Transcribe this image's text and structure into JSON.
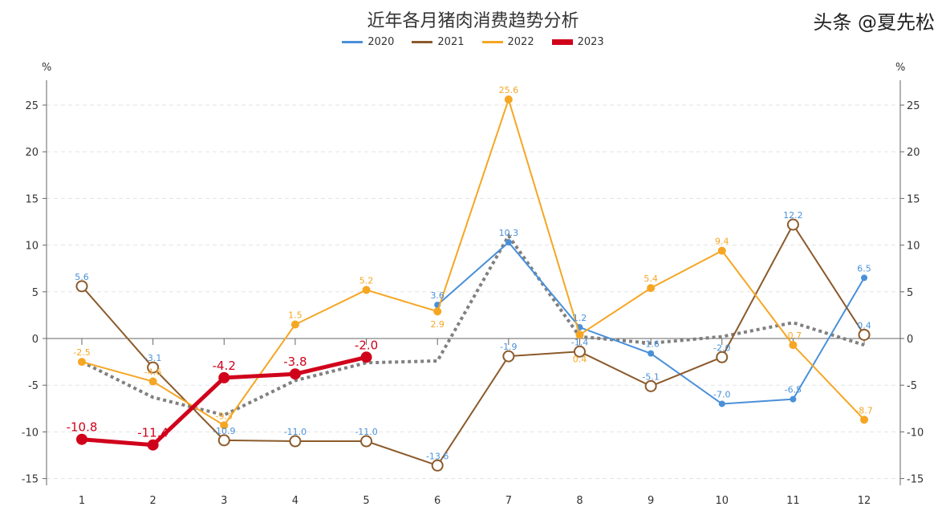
{
  "chart_data": {
    "type": "line",
    "title": "近年各月猪肉消费趋势分析",
    "categories": [
      "1",
      "2",
      "3",
      "4",
      "5",
      "6",
      "7",
      "8",
      "9",
      "10",
      "11",
      "12"
    ],
    "ylabel_left": "%",
    "ylabel_right": "%",
    "ylim": [
      -15,
      25
    ],
    "yticks": [
      -15,
      -10,
      -5,
      0,
      5,
      10,
      15,
      20,
      25
    ],
    "grid": true,
    "legend_position": "top",
    "series": [
      {
        "name": "2020",
        "color": "#4a90d9",
        "values": [
          null,
          null,
          null,
          null,
          null,
          3.6,
          10.3,
          1.2,
          -1.6,
          -7.0,
          -6.5,
          6.5
        ]
      },
      {
        "name": "2021",
        "color": "#8b5a2b",
        "values": [
          5.6,
          -3.1,
          -10.9,
          -11.0,
          -11.0,
          -13.6,
          -1.9,
          -1.4,
          -5.1,
          -2.0,
          12.2,
          0.4
        ]
      },
      {
        "name": "2022",
        "color": "#f5a623",
        "values": [
          -2.5,
          -4.6,
          -9.3,
          1.5,
          5.2,
          2.9,
          25.6,
          0.4,
          5.4,
          9.4,
          -0.7,
          -8.7
        ]
      },
      {
        "name": "2023",
        "color": "#d0021b",
        "values": [
          -10.8,
          -11.4,
          -4.2,
          -3.8,
          -2.0,
          null,
          null,
          null,
          null,
          null,
          null,
          null
        ]
      },
      {
        "color": "#808080",
        "style": "dotted",
        "values": [
          -2.5,
          -6.3,
          -8.2,
          -4.5,
          -2.6,
          -2.4,
          11.0,
          0.2,
          -0.5,
          0.2,
          1.7,
          -0.7
        ]
      }
    ]
  },
  "watermark": "头条 @夏先松"
}
